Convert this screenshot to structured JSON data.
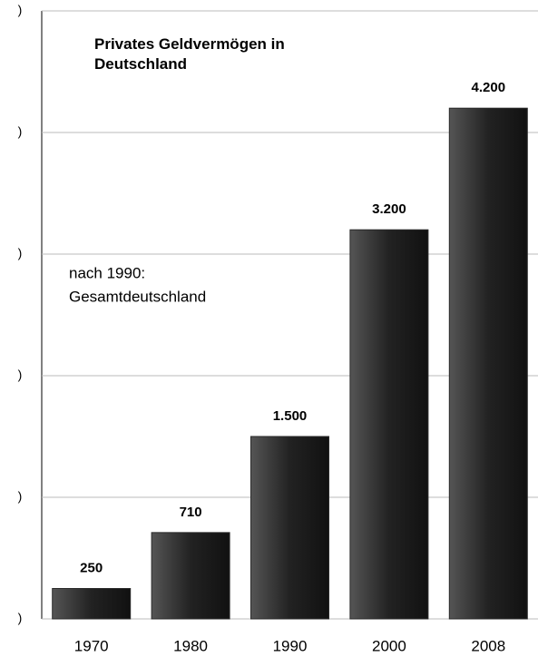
{
  "chart_data": {
    "type": "bar",
    "title": "Privates Geldvermögen in Deutschland",
    "annotation": [
      "nach 1990:",
      "Gesamtdeutschland"
    ],
    "categories": [
      "1970",
      "1980",
      "1990",
      "2000",
      "2008"
    ],
    "values": [
      250,
      710,
      1500,
      3200,
      4200
    ],
    "value_labels": [
      "250",
      "710",
      "1.500",
      "3.200",
      "4.200"
    ],
    "color": "#2a2a2a",
    "ylim": [
      0,
      5000
    ],
    "yticks": [
      {
        "value": 0,
        "label": ")"
      },
      {
        "value": 1000,
        "label": ")"
      },
      {
        "value": 2000,
        "label": ")"
      },
      {
        "value": 3000,
        "label": ")"
      },
      {
        "value": 4000,
        "label": ")"
      },
      {
        "value": 5000,
        "label": ")"
      }
    ],
    "grid": true
  }
}
